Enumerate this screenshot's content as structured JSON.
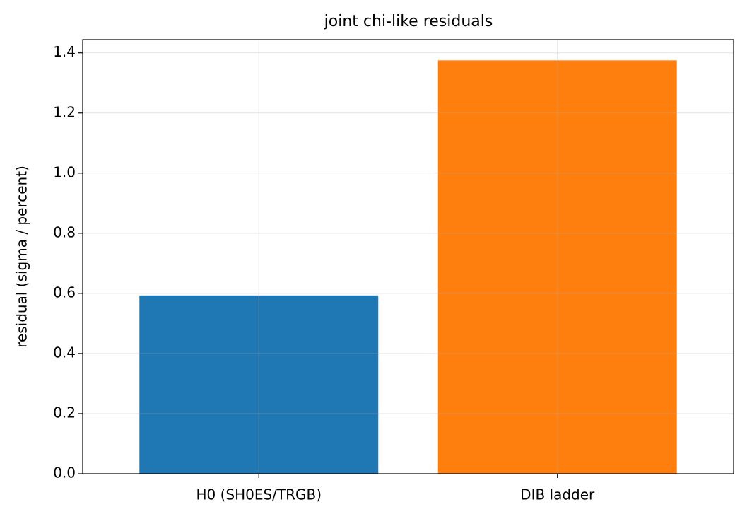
{
  "chart_data": {
    "type": "bar",
    "title": "joint chi-like residuals",
    "y_label": "residual (sigma / percent)",
    "categories": [
      "H0 (SH0ES/TRGB)",
      "DIB ladder"
    ],
    "values": [
      0.593,
      1.375
    ],
    "colors": [
      "#1f77b4",
      "#ff7f0e"
    ],
    "ylim": [
      0,
      1.444
    ],
    "yticks": [
      {
        "value": 0,
        "label": "0.0"
      },
      0.2,
      0.4,
      0.6,
      0.8,
      {
        "value": 1,
        "label": "1.0"
      },
      1.2,
      1.4
    ],
    "grid": true
  }
}
